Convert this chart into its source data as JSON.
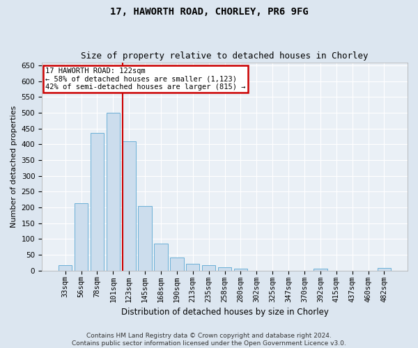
{
  "title1": "17, HAWORTH ROAD, CHORLEY, PR6 9FG",
  "title2": "Size of property relative to detached houses in Chorley",
  "xlabel": "Distribution of detached houses by size in Chorley",
  "ylabel": "Number of detached properties",
  "categories": [
    "33sqm",
    "56sqm",
    "78sqm",
    "101sqm",
    "123sqm",
    "145sqm",
    "168sqm",
    "190sqm",
    "213sqm",
    "235sqm",
    "258sqm",
    "280sqm",
    "302sqm",
    "325sqm",
    "347sqm",
    "370sqm",
    "392sqm",
    "415sqm",
    "437sqm",
    "460sqm",
    "482sqm"
  ],
  "values": [
    17,
    212,
    435,
    500,
    410,
    205,
    85,
    40,
    22,
    17,
    10,
    5,
    0,
    0,
    0,
    0,
    5,
    0,
    0,
    0,
    7
  ],
  "bar_color": "#ccdded",
  "bar_edge_color": "#6aafd6",
  "vline_color": "#cc0000",
  "vline_x": 3.6,
  "annotation_line1": "17 HAWORTH ROAD: 122sqm",
  "annotation_line2": "← 58% of detached houses are smaller (1,123)",
  "annotation_line3": "42% of semi-detached houses are larger (815) →",
  "annotation_box_color": "#ffffff",
  "annotation_box_edge": "#cc0000",
  "ylim": [
    0,
    660
  ],
  "yticks": [
    0,
    50,
    100,
    150,
    200,
    250,
    300,
    350,
    400,
    450,
    500,
    550,
    600,
    650
  ],
  "footer1": "Contains HM Land Registry data © Crown copyright and database right 2024.",
  "footer2": "Contains public sector information licensed under the Open Government Licence v3.0.",
  "bg_color": "#dce6f0",
  "plot_bg_color": "#eaf0f6",
  "grid_color": "#ffffff",
  "title1_fontsize": 10,
  "title2_fontsize": 9,
  "xlabel_fontsize": 8.5,
  "ylabel_fontsize": 8,
  "tick_fontsize": 7.5,
  "annot_fontsize": 7.5,
  "footer_fontsize": 6.5
}
